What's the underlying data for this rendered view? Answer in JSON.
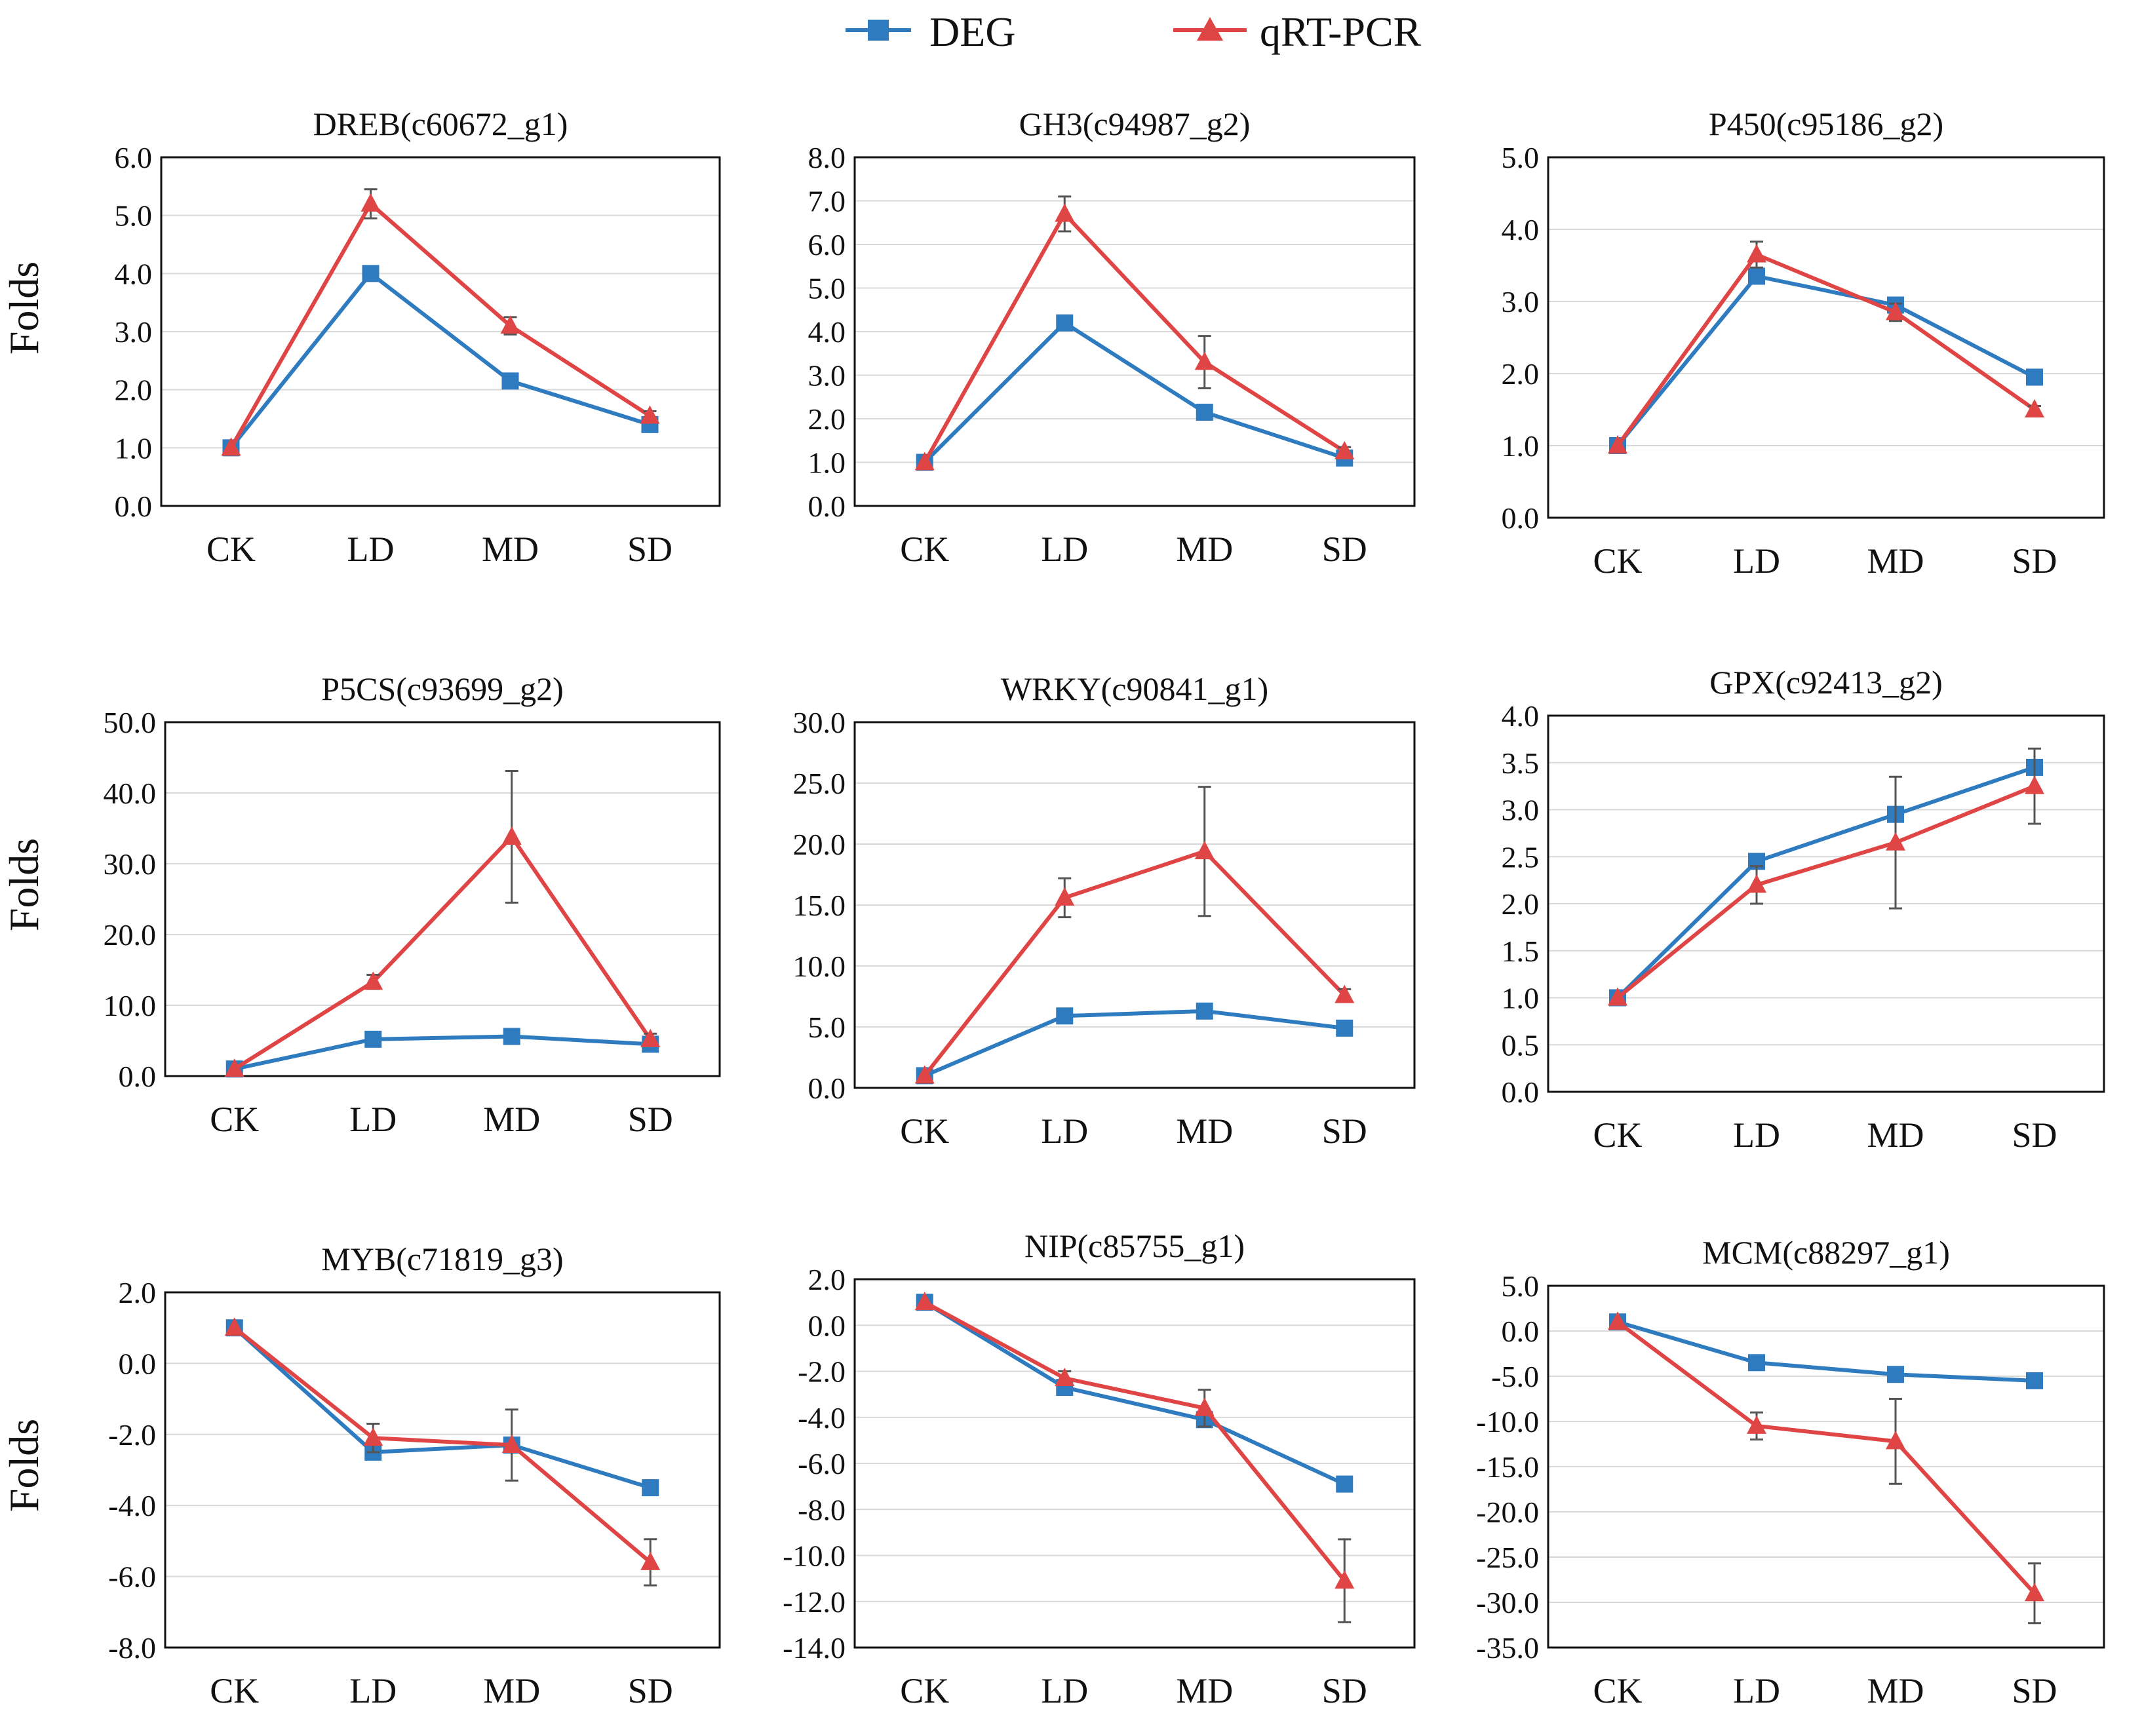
{
  "legend": {
    "deg_label": "DEG",
    "qrt_label": "qRT-PCR"
  },
  "colors": {
    "deg": "#2e7bbf",
    "qrt": "#e04545",
    "error": "#555555"
  },
  "icons": {
    "deg_marker": "square-marker-icon",
    "qrt_marker": "triangle-marker-icon"
  },
  "row_ylabel": "Folds",
  "chart_data": [
    {
      "type": "line",
      "title": "DREB(c60672_g1)",
      "categories": [
        "CK",
        "LD",
        "MD",
        "SD"
      ],
      "ylabel": "Folds",
      "ylim": [
        0,
        6
      ],
      "yticks": [
        "0.0",
        "1.0",
        "2.0",
        "3.0",
        "4.0",
        "5.0",
        "6.0"
      ],
      "grid": true,
      "series": [
        {
          "name": "DEG",
          "values": [
            1.0,
            4.0,
            2.15,
            1.4
          ]
        },
        {
          "name": "qRT-PCR",
          "values": [
            1.0,
            5.2,
            3.1,
            1.55
          ],
          "error": [
            0,
            0.25,
            0.15,
            0.08
          ]
        }
      ]
    },
    {
      "type": "line",
      "title": "GH3(c94987_g2)",
      "categories": [
        "CK",
        "LD",
        "MD",
        "SD"
      ],
      "ylim": [
        0,
        8
      ],
      "yticks": [
        "0.0",
        "1.0",
        "2.0",
        "3.0",
        "4.0",
        "5.0",
        "6.0",
        "7.0",
        "8.0"
      ],
      "grid": true,
      "series": [
        {
          "name": "DEG",
          "values": [
            1.0,
            4.2,
            2.15,
            1.1
          ]
        },
        {
          "name": "qRT-PCR",
          "values": [
            1.0,
            6.7,
            3.3,
            1.25
          ],
          "error": [
            0,
            0.4,
            0.6,
            0.1
          ]
        }
      ]
    },
    {
      "type": "line",
      "title": "P450(c95186_g2)",
      "categories": [
        "CK",
        "LD",
        "MD",
        "SD"
      ],
      "ylim": [
        0,
        5
      ],
      "yticks": [
        "0.0",
        "1.0",
        "2.0",
        "3.0",
        "4.0",
        "5.0"
      ],
      "grid": true,
      "series": [
        {
          "name": "DEG",
          "values": [
            1.0,
            3.35,
            2.95,
            1.95
          ]
        },
        {
          "name": "qRT-PCR",
          "values": [
            1.0,
            3.65,
            2.85,
            1.5
          ],
          "error": [
            0,
            0.18,
            0.12,
            0.05
          ]
        }
      ]
    },
    {
      "type": "line",
      "title": "P5CS(c93699_g2)",
      "categories": [
        "CK",
        "LD",
        "MD",
        "SD"
      ],
      "ylabel": "Folds",
      "ylim": [
        0,
        50
      ],
      "yticks": [
        "0.0",
        "10.0",
        "20.0",
        "30.0",
        "40.0",
        "50.0"
      ],
      "grid": true,
      "series": [
        {
          "name": "DEG",
          "values": [
            1.0,
            5.2,
            5.6,
            4.5
          ]
        },
        {
          "name": "qRT-PCR",
          "values": [
            1.0,
            13.3,
            33.8,
            5.2
          ],
          "error": [
            0,
            1.0,
            9.3,
            0.8
          ]
        }
      ]
    },
    {
      "type": "line",
      "title": "WRKY(c90841_g1)",
      "categories": [
        "CK",
        "LD",
        "MD",
        "SD"
      ],
      "ylim": [
        0,
        30
      ],
      "yticks": [
        "0.0",
        "5.0",
        "10.0",
        "15.0",
        "20.0",
        "25.0",
        "30.0"
      ],
      "grid": true,
      "series": [
        {
          "name": "DEG",
          "values": [
            1.0,
            5.9,
            6.3,
            4.9
          ]
        },
        {
          "name": "qRT-PCR",
          "values": [
            1.0,
            15.6,
            19.4,
            7.6
          ],
          "error": [
            0,
            1.6,
            5.3,
            0.5
          ]
        }
      ]
    },
    {
      "type": "line",
      "title": "GPX(c92413_g2)",
      "categories": [
        "CK",
        "LD",
        "MD",
        "SD"
      ],
      "ylim": [
        0,
        4
      ],
      "yticks": [
        "0.0",
        "0.5",
        "1.0",
        "1.5",
        "2.0",
        "2.5",
        "3.0",
        "3.5",
        "4.0"
      ],
      "grid": true,
      "series": [
        {
          "name": "DEG",
          "values": [
            1.0,
            2.45,
            2.95,
            3.45
          ]
        },
        {
          "name": "qRT-PCR",
          "values": [
            1.0,
            2.2,
            2.65,
            3.25
          ],
          "error": [
            0,
            0.2,
            0.7,
            0.4
          ]
        }
      ]
    },
    {
      "type": "line",
      "title": "MYB(c71819_g3)",
      "categories": [
        "CK",
        "LD",
        "MD",
        "SD"
      ],
      "ylabel": "Folds",
      "ylim": [
        -8,
        2
      ],
      "yticks": [
        "-8.0",
        "-6.0",
        "-4.0",
        "-2.0",
        "0.0",
        "2.0"
      ],
      "grid": true,
      "series": [
        {
          "name": "DEG",
          "values": [
            1.0,
            -2.5,
            -2.3,
            -3.5
          ]
        },
        {
          "name": "qRT-PCR",
          "values": [
            1.0,
            -2.1,
            -2.3,
            -5.6
          ],
          "error": [
            0,
            0.4,
            1.0,
            0.65
          ]
        }
      ]
    },
    {
      "type": "line",
      "title": "NIP(c85755_g1)",
      "categories": [
        "CK",
        "LD",
        "MD",
        "SD"
      ],
      "ylim": [
        -14,
        2
      ],
      "yticks": [
        "-14.0",
        "-12.0",
        "-10.0",
        "-8.0",
        "-6.0",
        "-4.0",
        "-2.0",
        "0.0",
        "2.0"
      ],
      "grid": true,
      "series": [
        {
          "name": "DEG",
          "values": [
            1.0,
            -2.7,
            -4.1,
            -6.9
          ]
        },
        {
          "name": "qRT-PCR",
          "values": [
            1.0,
            -2.3,
            -3.6,
            -11.1
          ],
          "error": [
            0,
            0.3,
            0.8,
            1.8
          ]
        }
      ]
    },
    {
      "type": "line",
      "title": "MCM(c88297_g1)",
      "categories": [
        "CK",
        "LD",
        "MD",
        "SD"
      ],
      "ylim": [
        -35,
        5
      ],
      "yticks": [
        "-35.0",
        "-30.0",
        "-25.0",
        "-20.0",
        "-15.0",
        "-10.0",
        "-5.0",
        "0.0",
        "5.0"
      ],
      "grid": true,
      "series": [
        {
          "name": "DEG",
          "values": [
            1.0,
            -3.5,
            -4.8,
            -5.5
          ]
        },
        {
          "name": "qRT-PCR",
          "values": [
            1.0,
            -10.5,
            -12.2,
            -29.0
          ],
          "error": [
            0,
            1.5,
            4.7,
            3.3
          ]
        }
      ]
    }
  ]
}
